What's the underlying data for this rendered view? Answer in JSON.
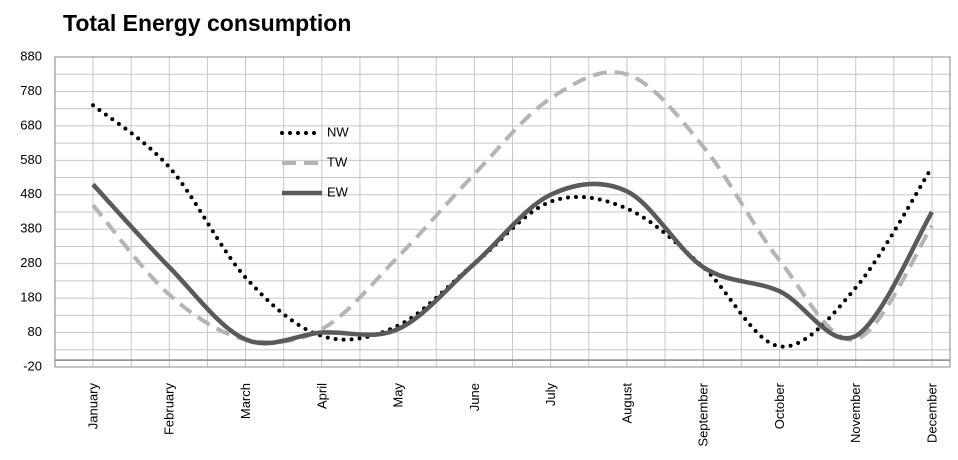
{
  "chart_data": {
    "type": "line",
    "title": "Total Energy consumption",
    "categories": [
      "January",
      "February",
      "March",
      "April",
      "May",
      "June",
      "July",
      "August",
      "September",
      "October",
      "November",
      "December"
    ],
    "series": [
      {
        "name": "NW",
        "color": "#000000",
        "style": "dotted",
        "values": [
          740,
          560,
          240,
          70,
          100,
          280,
          460,
          440,
          270,
          40,
          210,
          560
        ]
      },
      {
        "name": "TW",
        "color": "#b4b4b4",
        "style": "dashed",
        "values": [
          450,
          190,
          60,
          90,
          300,
          540,
          760,
          830,
          620,
          290,
          60,
          390
        ]
      },
      {
        "name": "EW",
        "color": "#5a5a5a",
        "style": "solid",
        "values": [
          510,
          270,
          60,
          80,
          90,
          280,
          480,
          490,
          270,
          200,
          70,
          430
        ]
      }
    ],
    "ylim": [
      -20,
      880
    ],
    "yticks": [
      -20,
      80,
      180,
      280,
      380,
      480,
      580,
      680,
      780,
      880
    ],
    "grid": true
  }
}
